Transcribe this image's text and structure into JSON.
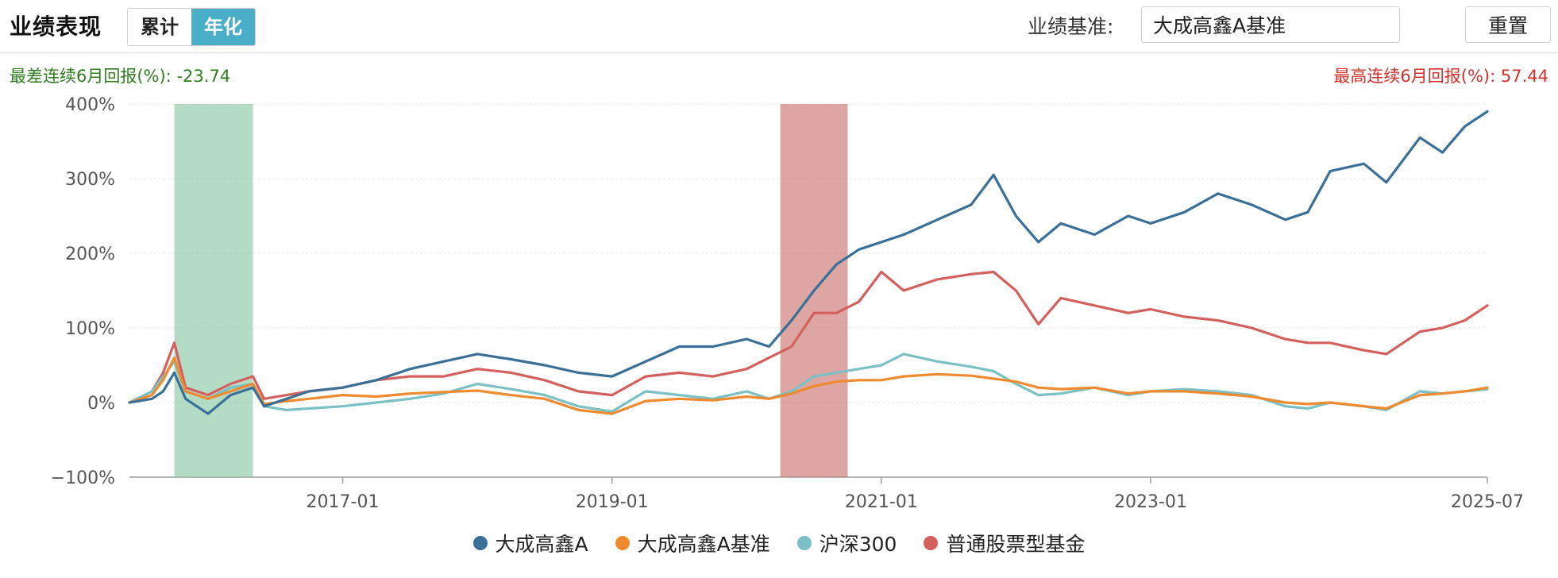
{
  "header": {
    "title": "业绩表现",
    "tabs": [
      {
        "label": "累计",
        "active": false
      },
      {
        "label": "年化",
        "active": true
      }
    ],
    "benchmark_label": "业绩基准:",
    "benchmark_value": "大成高鑫A基准",
    "reset_label": "重置"
  },
  "stats": {
    "worst_label": "最差连续6月回报(%):",
    "worst_value": "-23.74",
    "best_label": "最高连续6月回报(%):",
    "best_value": "57.44"
  },
  "colors": {
    "fund": "#3a6f98",
    "benchmark": "#ef8a2f",
    "hs300": "#79c1c4",
    "stock_fund": "#d4605d",
    "worst_band": "#8cc8a4",
    "best_band": "#c66b66"
  },
  "chart_data": {
    "type": "line",
    "x_range": [
      "2015-06",
      "2025-07"
    ],
    "x_ticks": [
      "2017-01",
      "2019-01",
      "2021-01",
      "2023-01",
      "2025-07"
    ],
    "y_ticks": [
      "400%",
      "300%",
      "200%",
      "100%",
      "0%",
      "−100%"
    ],
    "ylim": [
      -100,
      400
    ],
    "grid": true,
    "legend_position": "bottom",
    "highlight_bands": [
      {
        "label": "worst_6m",
        "start": "2015-10",
        "end": "2016-05"
      },
      {
        "label": "best_6m",
        "start": "2020-04",
        "end": "2020-10"
      }
    ],
    "series": [
      {
        "name": "大成高鑫A",
        "x": [
          "2015-06",
          "2015-08",
          "2015-09",
          "2015-10",
          "2015-11",
          "2016-01",
          "2016-03",
          "2016-05",
          "2016-06",
          "2016-08",
          "2016-10",
          "2017-01",
          "2017-04",
          "2017-07",
          "2017-10",
          "2018-01",
          "2018-04",
          "2018-07",
          "2018-10",
          "2019-01",
          "2019-04",
          "2019-07",
          "2019-10",
          "2020-01",
          "2020-03",
          "2020-05",
          "2020-07",
          "2020-09",
          "2020-11",
          "2021-01",
          "2021-03",
          "2021-06",
          "2021-09",
          "2021-11",
          "2022-01",
          "2022-03",
          "2022-05",
          "2022-08",
          "2022-11",
          "2023-01",
          "2023-04",
          "2023-07",
          "2023-10",
          "2024-01",
          "2024-03",
          "2024-05",
          "2024-08",
          "2024-10",
          "2025-01",
          "2025-03",
          "2025-05",
          "2025-07"
        ],
        "values": [
          0,
          5,
          15,
          40,
          5,
          -15,
          10,
          20,
          -5,
          5,
          15,
          20,
          30,
          45,
          55,
          65,
          58,
          50,
          40,
          35,
          55,
          75,
          75,
          85,
          75,
          110,
          150,
          185,
          205,
          215,
          225,
          245,
          265,
          305,
          250,
          215,
          240,
          225,
          250,
          240,
          255,
          280,
          265,
          245,
          255,
          310,
          320,
          295,
          355,
          335,
          370,
          390
        ]
      },
      {
        "name": "大成高鑫A基准",
        "x": [
          "2015-06",
          "2015-08",
          "2015-09",
          "2015-10",
          "2015-11",
          "2016-01",
          "2016-03",
          "2016-05",
          "2016-06",
          "2016-08",
          "2016-10",
          "2017-01",
          "2017-04",
          "2017-07",
          "2017-10",
          "2018-01",
          "2018-04",
          "2018-07",
          "2018-10",
          "2019-01",
          "2019-04",
          "2019-07",
          "2019-10",
          "2020-01",
          "2020-03",
          "2020-05",
          "2020-07",
          "2020-09",
          "2020-11",
          "2021-01",
          "2021-03",
          "2021-06",
          "2021-09",
          "2021-11",
          "2022-01",
          "2022-03",
          "2022-05",
          "2022-08",
          "2022-11",
          "2023-01",
          "2023-04",
          "2023-07",
          "2023-10",
          "2024-01",
          "2024-03",
          "2024-05",
          "2024-08",
          "2024-10",
          "2025-01",
          "2025-03",
          "2025-05",
          "2025-07"
        ],
        "values": [
          0,
          10,
          30,
          60,
          15,
          5,
          15,
          25,
          -2,
          2,
          5,
          10,
          8,
          12,
          14,
          16,
          10,
          5,
          -10,
          -15,
          2,
          5,
          3,
          8,
          5,
          12,
          22,
          28,
          30,
          30,
          35,
          38,
          36,
          32,
          28,
          20,
          18,
          20,
          12,
          15,
          15,
          12,
          8,
          0,
          -2,
          0,
          -5,
          -8,
          10,
          12,
          15,
          20
        ]
      },
      {
        "name": "沪深300",
        "x": [
          "2015-06",
          "2015-08",
          "2015-09",
          "2015-10",
          "2015-11",
          "2016-01",
          "2016-03",
          "2016-05",
          "2016-06",
          "2016-08",
          "2016-10",
          "2017-01",
          "2017-04",
          "2017-07",
          "2017-10",
          "2018-01",
          "2018-04",
          "2018-07",
          "2018-10",
          "2019-01",
          "2019-04",
          "2019-07",
          "2019-10",
          "2020-01",
          "2020-03",
          "2020-05",
          "2020-07",
          "2020-09",
          "2020-11",
          "2021-01",
          "2021-03",
          "2021-06",
          "2021-09",
          "2021-11",
          "2022-01",
          "2022-03",
          "2022-05",
          "2022-08",
          "2022-11",
          "2023-01",
          "2023-04",
          "2023-07",
          "2023-10",
          "2024-01",
          "2024-03",
          "2024-05",
          "2024-08",
          "2024-10",
          "2025-01",
          "2025-03",
          "2025-05",
          "2025-07"
        ],
        "values": [
          0,
          15,
          35,
          55,
          15,
          5,
          20,
          25,
          -5,
          -10,
          -8,
          -5,
          0,
          5,
          12,
          25,
          18,
          10,
          -5,
          -12,
          15,
          10,
          5,
          15,
          5,
          15,
          35,
          40,
          45,
          50,
          65,
          55,
          48,
          42,
          25,
          10,
          12,
          20,
          10,
          15,
          18,
          15,
          10,
          -5,
          -8,
          0,
          -5,
          -10,
          15,
          12,
          15,
          18
        ]
      },
      {
        "name": "普通股票型基金",
        "x": [
          "2015-06",
          "2015-08",
          "2015-09",
          "2015-10",
          "2015-11",
          "2016-01",
          "2016-03",
          "2016-05",
          "2016-06",
          "2016-08",
          "2016-10",
          "2017-01",
          "2017-04",
          "2017-07",
          "2017-10",
          "2018-01",
          "2018-04",
          "2018-07",
          "2018-10",
          "2019-01",
          "2019-04",
          "2019-07",
          "2019-10",
          "2020-01",
          "2020-03",
          "2020-05",
          "2020-07",
          "2020-09",
          "2020-11",
          "2021-01",
          "2021-03",
          "2021-06",
          "2021-09",
          "2021-11",
          "2022-01",
          "2022-03",
          "2022-05",
          "2022-08",
          "2022-11",
          "2023-01",
          "2023-04",
          "2023-07",
          "2023-10",
          "2024-01",
          "2024-03",
          "2024-05",
          "2024-08",
          "2024-10",
          "2025-01",
          "2025-03",
          "2025-05",
          "2025-07"
        ],
        "values": [
          0,
          15,
          40,
          80,
          20,
          10,
          25,
          35,
          5,
          10,
          15,
          20,
          30,
          35,
          35,
          45,
          40,
          30,
          15,
          10,
          35,
          40,
          35,
          45,
          60,
          75,
          120,
          120,
          135,
          175,
          150,
          165,
          172,
          175,
          150,
          105,
          140,
          130,
          120,
          125,
          115,
          110,
          100,
          85,
          80,
          80,
          70,
          65,
          95,
          100,
          110,
          130
        ]
      }
    ]
  }
}
